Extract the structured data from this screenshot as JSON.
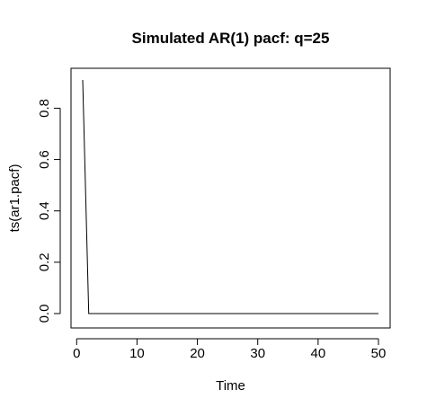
{
  "chart_data": {
    "type": "line",
    "title": "Simulated AR(1) pacf: q=25",
    "xlabel": "Time",
    "ylabel": "ts(ar1.pacf)",
    "xlim": [
      1,
      50
    ],
    "ylim": [
      0,
      0.91
    ],
    "xticks": [
      0,
      10,
      20,
      30,
      40,
      50
    ],
    "yticks": [
      0.0,
      0.2,
      0.4,
      0.6,
      0.8
    ],
    "xtick_labels": [
      "0",
      "10",
      "20",
      "30",
      "40",
      "50"
    ],
    "ytick_labels": [
      "0.0",
      "0.2",
      "0.4",
      "0.6",
      "0.8"
    ],
    "grid": false,
    "series": [
      {
        "color": "#000000",
        "x": [
          1,
          2,
          3,
          4,
          5,
          6,
          7,
          8,
          9,
          10,
          11,
          12,
          13,
          14,
          15,
          16,
          17,
          18,
          19,
          20,
          21,
          22,
          23,
          24,
          25,
          26,
          27,
          28,
          29,
          30,
          31,
          32,
          33,
          34,
          35,
          36,
          37,
          38,
          39,
          40,
          41,
          42,
          43,
          44,
          45,
          46,
          47,
          48,
          49,
          50
        ],
        "values": [
          0.91,
          0,
          0,
          0,
          0,
          0,
          0,
          0,
          0,
          0,
          0,
          0,
          0,
          0,
          0,
          0,
          0,
          0,
          0,
          0,
          0,
          0,
          0,
          0,
          0,
          0,
          0,
          0,
          0,
          0,
          0,
          0,
          0,
          0,
          0,
          0,
          0,
          0,
          0,
          0,
          0,
          0,
          0,
          0,
          0,
          0,
          0,
          0,
          0,
          0
        ]
      }
    ]
  }
}
